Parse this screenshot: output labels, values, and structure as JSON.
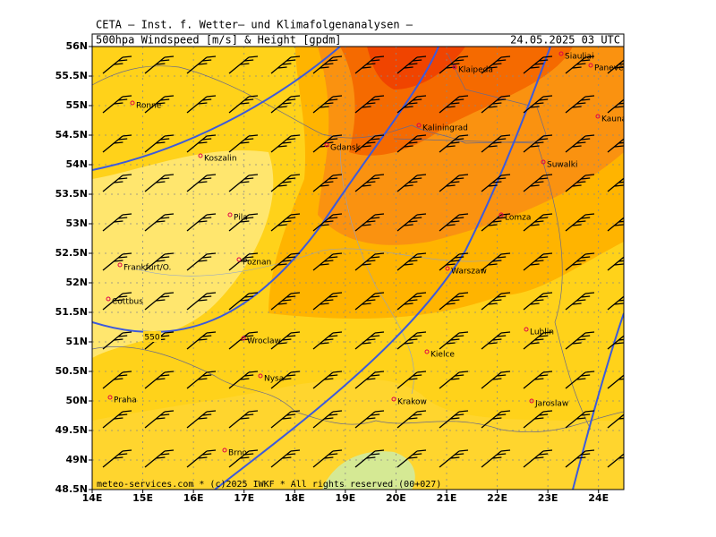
{
  "header": {
    "title": "CETA – Inst. f. Wetter– und Klimafolgenanalysen –",
    "subtitle": "500hpa Windspeed [m/s] & Height [gpdm]",
    "date": "24.05.2025 03 UTC"
  },
  "map": {
    "xlim": [
      14,
      24.5
    ],
    "ylim": [
      48.5,
      56
    ],
    "xticks": [
      {
        "value": 14,
        "label": "14E"
      },
      {
        "value": 15,
        "label": "15E"
      },
      {
        "value": 16,
        "label": "16E"
      },
      {
        "value": 17,
        "label": "17E"
      },
      {
        "value": 18,
        "label": "18E"
      },
      {
        "value": 19,
        "label": "19E"
      },
      {
        "value": 20,
        "label": "20E"
      },
      {
        "value": 21,
        "label": "21E"
      },
      {
        "value": 22,
        "label": "22E"
      },
      {
        "value": 23,
        "label": "23E"
      },
      {
        "value": 24,
        "label": "24E"
      }
    ],
    "yticks": [
      {
        "value": 48.5,
        "label": "48.5N"
      },
      {
        "value": 49,
        "label": "49N"
      },
      {
        "value": 49.5,
        "label": "49.5N"
      },
      {
        "value": 50,
        "label": "50N"
      },
      {
        "value": 50.5,
        "label": "50.5N"
      },
      {
        "value": 51,
        "label": "51N"
      },
      {
        "value": 51.5,
        "label": "51.5N"
      },
      {
        "value": 52,
        "label": "52N"
      },
      {
        "value": 52.5,
        "label": "52.5N"
      },
      {
        "value": 53,
        "label": "53N"
      },
      {
        "value": 53.5,
        "label": "53.5N"
      },
      {
        "value": 54,
        "label": "54N"
      },
      {
        "value": 54.5,
        "label": "54.5N"
      },
      {
        "value": 55,
        "label": "55N"
      },
      {
        "value": 55.5,
        "label": "55.5N"
      },
      {
        "value": 56,
        "label": "56N"
      }
    ],
    "contour_label": "550",
    "cities": [
      "Ronne",
      "Koszalin",
      "Gdansk",
      "Kaliningrad",
      "Klaipeda",
      "Siauliai",
      "Panevezys",
      "Kaunas",
      "Suwalki",
      "Lomza",
      "Pila",
      "Poznan",
      "Frankfurt/O.",
      "Cottbus",
      "Warszaw",
      "Wroclaw",
      "Lublin",
      "Kielce",
      "Nysa",
      "Krakow",
      "Jaroslaw",
      "Praha",
      "Brno"
    ]
  },
  "footer": "meteo-services.com * (c)2025 IWKF * All rights reserved (00+027)"
}
